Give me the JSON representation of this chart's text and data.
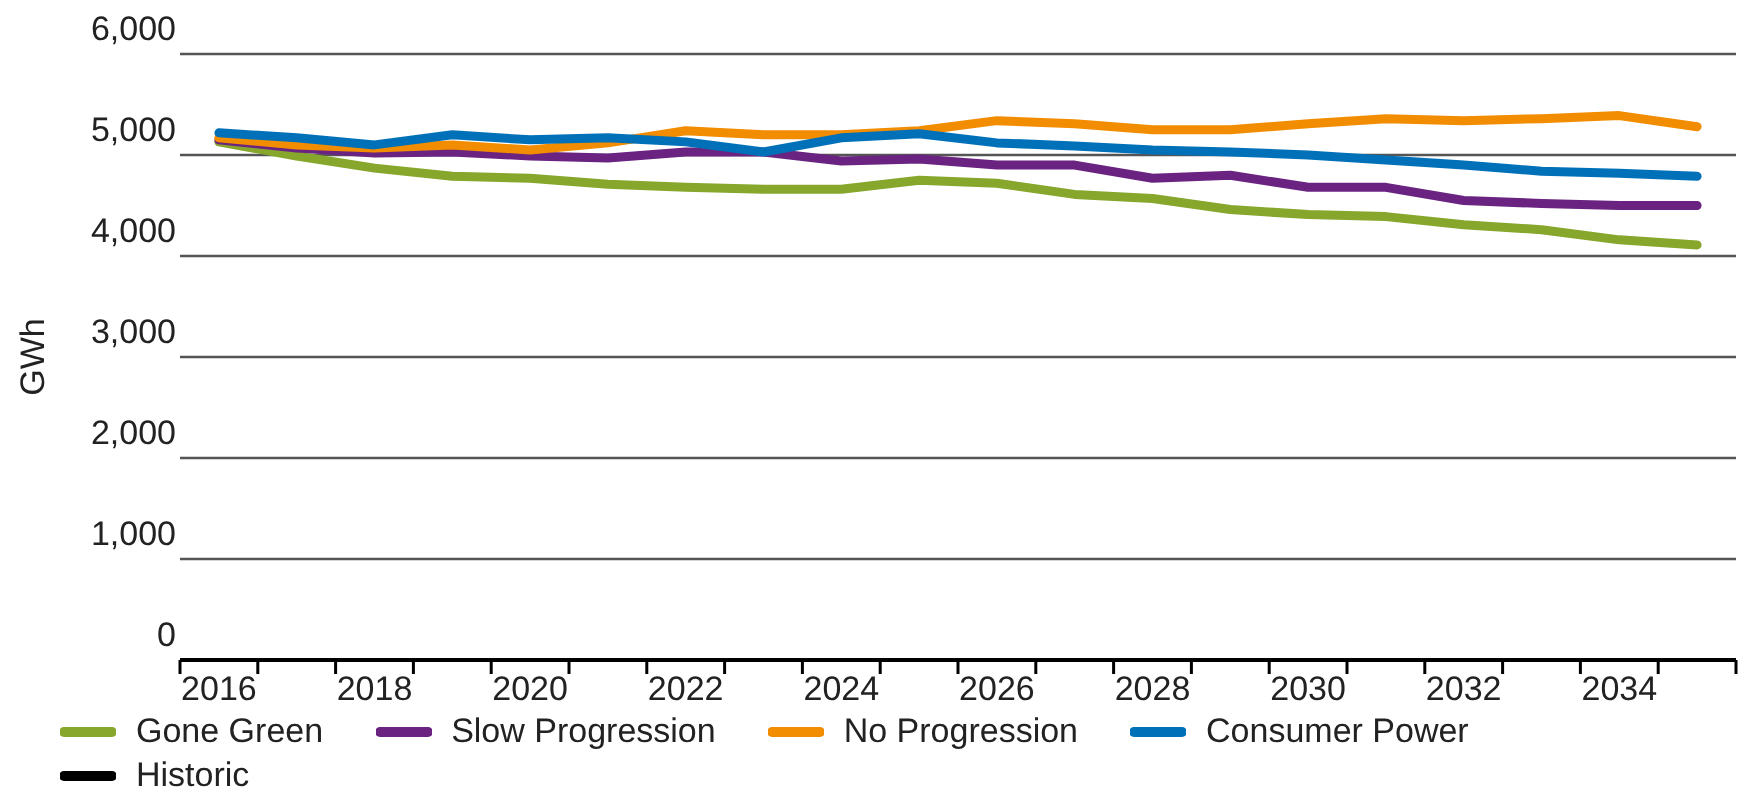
{
  "chart_data": {
    "type": "line",
    "ylabel": "GWh",
    "categories": [
      "2016",
      null,
      "2018",
      null,
      "2020",
      null,
      "2022",
      null,
      "2024",
      null,
      "2026",
      null,
      "2028",
      null,
      "2030",
      null,
      "2032",
      null,
      "2034",
      null
    ],
    "series": [
      {
        "name": "Gone Green",
        "color": "#86a62c",
        "values": [
          5130,
          4990,
          4870,
          4790,
          4770,
          4710,
          4680,
          4660,
          4660,
          4750,
          4720,
          4610,
          4570,
          4460,
          4410,
          4390,
          4310,
          4260,
          4160,
          4110
        ]
      },
      {
        "name": "Slow Progression",
        "color": "#6a2380",
        "values": [
          5150,
          5070,
          5020,
          5030,
          4990,
          4970,
          5030,
          5030,
          4940,
          4960,
          4900,
          4900,
          4770,
          4800,
          4680,
          4680,
          4550,
          4520,
          4500,
          4500
        ]
      },
      {
        "name": "No Progression",
        "color": "#f28c00",
        "values": [
          5170,
          5100,
          5070,
          5100,
          5050,
          5120,
          5240,
          5200,
          5200,
          5240,
          5340,
          5310,
          5250,
          5250,
          5310,
          5360,
          5340,
          5360,
          5390,
          5280
        ]
      },
      {
        "name": "Consumer Power",
        "color": "#0070b8",
        "values": [
          5220,
          5170,
          5100,
          5200,
          5150,
          5170,
          5130,
          5030,
          5170,
          5210,
          5120,
          5090,
          5050,
          5030,
          5000,
          4950,
          4900,
          4840,
          4820,
          4790
        ]
      },
      {
        "name": "Historic",
        "color": "#000000",
        "values": [
          null,
          null,
          null,
          null,
          null,
          null,
          null,
          null,
          null,
          null,
          null,
          null,
          null,
          null,
          null,
          null,
          null,
          null,
          null,
          null
        ]
      }
    ],
    "ylim": [
      0,
      6000
    ],
    "yticks": [
      {
        "value": 0,
        "label": "0"
      },
      {
        "value": 1000,
        "label": "1,000"
      },
      {
        "value": 2000,
        "label": "2,000"
      },
      {
        "value": 3000,
        "label": "3,000"
      },
      {
        "value": 4000,
        "label": "4,000"
      },
      {
        "value": 5000,
        "label": "5,000"
      },
      {
        "value": 6000,
        "label": "6,000"
      }
    ],
    "grid": "y",
    "legend": "bottom left",
    "marker": "none",
    "line_style": "solid"
  }
}
